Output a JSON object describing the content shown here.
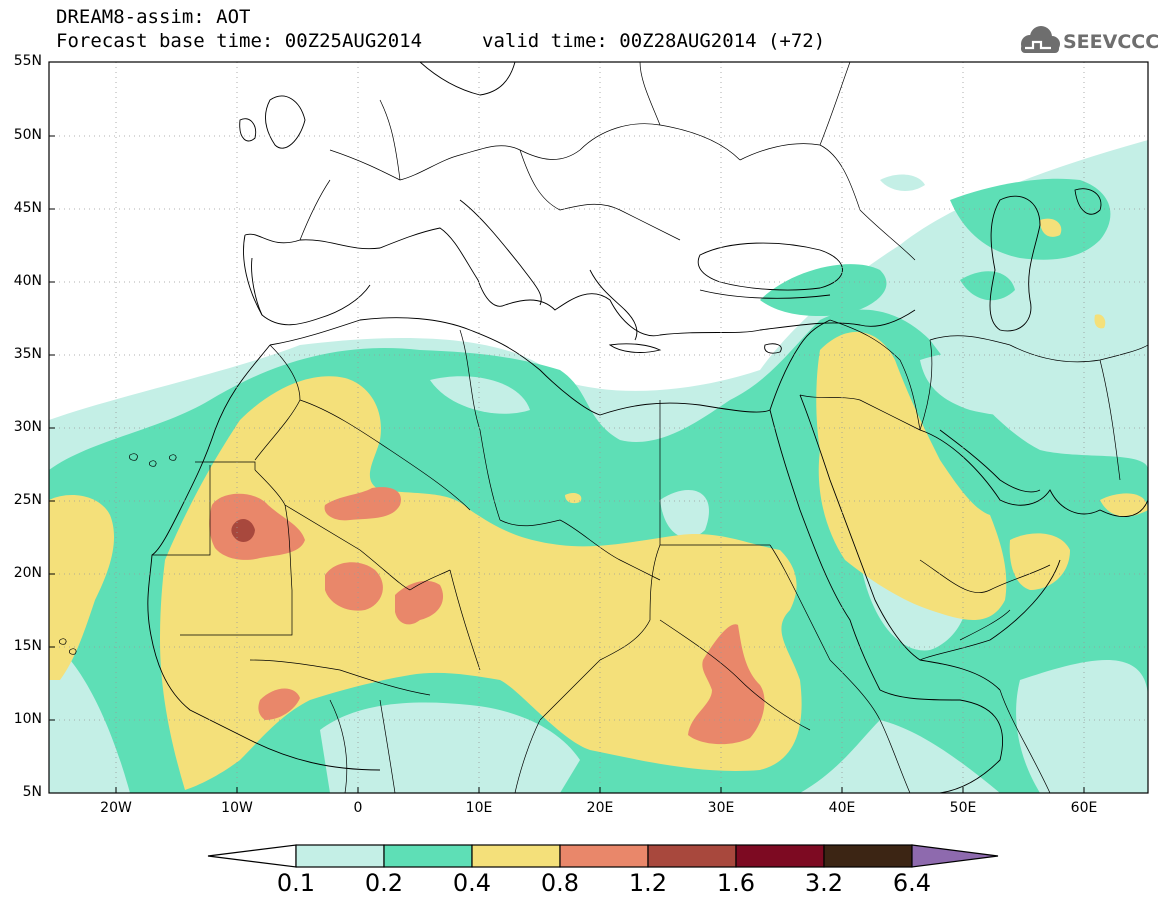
{
  "header": {
    "title": "DREAM8-assim: AOT",
    "base_time": "Forecast base time: 00Z25AUG2014",
    "valid_time": "valid time: 00Z28AUG2014 (+72)"
  },
  "logo": {
    "text": "SEEVCCC",
    "icon": "cloud-icon"
  },
  "map": {
    "lat_ticks": [
      "55N",
      "50N",
      "45N",
      "40N",
      "35N",
      "30N",
      "25N",
      "20N",
      "15N",
      "10N",
      "5N"
    ],
    "lon_ticks": [
      "20W",
      "10W",
      "0",
      "10E",
      "20E",
      "30E",
      "40E",
      "50E",
      "60E"
    ]
  },
  "colorbar": {
    "labels": [
      "0.1",
      "0.2",
      "0.4",
      "0.8",
      "1.2",
      "1.6",
      "3.2",
      "6.4"
    ],
    "colors": [
      "#ffffff",
      "#c4efe6",
      "#5edfb6",
      "#f4e07a",
      "#e9876a",
      "#a8483d",
      "#7d0a22",
      "#3c2514",
      "#8e6aae"
    ]
  },
  "colors": {
    "aot_0_1_0_2": "#c4efe6",
    "aot_0_2_0_4": "#5edfb6",
    "aot_0_4_0_8": "#f4e07a",
    "aot_0_8_1_2": "#e9876a",
    "aot_1_2_1_6": "#a8483d"
  }
}
